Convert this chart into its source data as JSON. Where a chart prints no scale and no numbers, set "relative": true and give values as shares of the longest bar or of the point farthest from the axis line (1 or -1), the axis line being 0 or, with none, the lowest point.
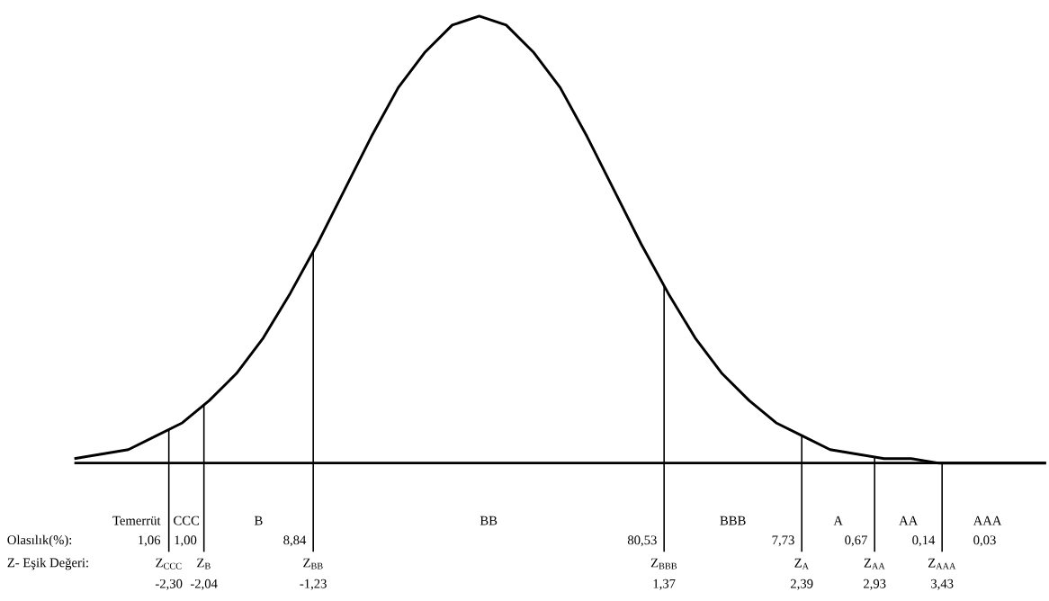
{
  "chart_data": {
    "type": "line",
    "relative": true,
    "color": "#000000",
    "xlim": [
      -3.0,
      4.2
    ],
    "xticks": [
      {
        "value": -2.3,
        "label": "-2,30"
      },
      {
        "value": -2.04,
        "label": "-2,04"
      },
      {
        "value": -1.23,
        "label": "-1,23"
      },
      {
        "value": 1.37,
        "label": "1,37"
      },
      {
        "value": 2.39,
        "label": "2,39"
      },
      {
        "value": 2.93,
        "label": "2,93"
      },
      {
        "value": 3.43,
        "label": "3,43"
      }
    ],
    "x": [
      -3.0,
      -2.8,
      -2.6,
      -2.4,
      -2.2,
      -2.0,
      -1.8,
      -1.6,
      -1.4,
      -1.2,
      -1.0,
      -0.8,
      -0.6,
      -0.4,
      -0.2,
      0,
      0.2,
      0.4,
      0.6,
      0.8,
      1.0,
      1.2,
      1.4,
      1.6,
      1.8,
      2.0,
      2.2,
      2.4,
      2.6,
      2.8,
      3.0,
      3.2,
      3.4,
      3.6,
      3.8,
      4.0,
      4.2
    ],
    "values": [
      0.01,
      0.02,
      0.03,
      0.06,
      0.09,
      0.14,
      0.2,
      0.28,
      0.38,
      0.49,
      0.61,
      0.73,
      0.84,
      0.92,
      0.98,
      1,
      0.98,
      0.92,
      0.84,
      0.73,
      0.61,
      0.49,
      0.38,
      0.28,
      0.2,
      0.14,
      0.09,
      0.06,
      0.03,
      0.02,
      0.01,
      0.01,
      0.0,
      0.0,
      0.0,
      0.0,
      0.0
    ],
    "ref_lines": [
      {
        "axis": "x",
        "value": -2.3,
        "label": "Z$_{CCC}$"
      },
      {
        "axis": "x",
        "value": -2.04,
        "label": "Z$_{B}$"
      },
      {
        "axis": "x",
        "value": -1.23,
        "label": "Z$_{BB}$"
      },
      {
        "axis": "x",
        "value": 1.37,
        "label": "Z$_{BBB}$"
      },
      {
        "axis": "x",
        "value": 2.39,
        "label": "Z$_{A}$"
      },
      {
        "axis": "x",
        "value": 2.93,
        "label": "Z$_{AA}$"
      },
      {
        "axis": "x",
        "value": 3.43,
        "label": "Z$_{AAA}$"
      }
    ],
    "annotations": [
      "Olasılık(%):",
      "Z- Eşik Değeri:",
      "Temerrüt",
      "CCC",
      "B",
      "BB",
      "BBB",
      "A",
      "AA",
      "AAA",
      "1,06",
      "1,00",
      "8,84",
      "80,53",
      "7,73",
      "0,67",
      "0,14",
      "0,03"
    ]
  }
}
